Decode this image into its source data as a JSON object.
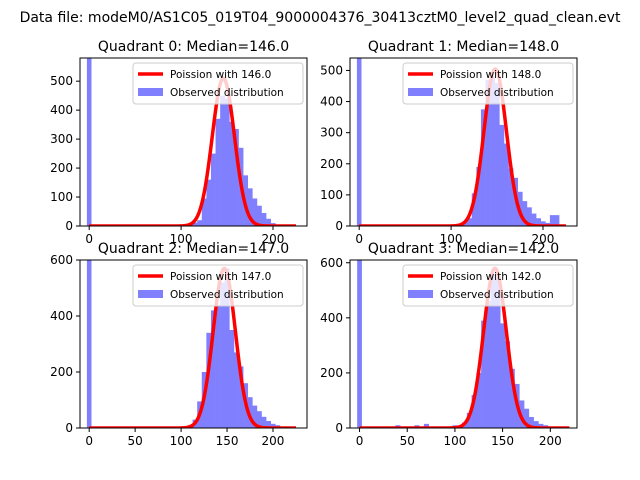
{
  "figure": {
    "suptitle": "Data file: modeM0/AS1C05_019T04_9000004376_30413cztM0_level2_quad_clean.evt"
  },
  "colors": {
    "poisson_line": "#ff0000",
    "observed_bars": "#8080ff",
    "axes": "#000000",
    "background": "#ffffff"
  },
  "chart_data": [
    {
      "type": "bar",
      "title": "Quadrant 0: Median=146.0",
      "legend_position": "top-right",
      "legend": [
        "Poission with 146.0",
        "Observed distribution"
      ],
      "xlim": [
        -10,
        237
      ],
      "ylim": [
        0,
        580
      ],
      "xticks": [
        0,
        100,
        200
      ],
      "yticks": [
        0,
        100,
        200,
        300,
        400,
        500
      ],
      "bin_width": 5,
      "spike": {
        "x": 0,
        "value": 580
      },
      "bins": [
        {
          "x": 110,
          "value": 5
        },
        {
          "x": 115,
          "value": 12
        },
        {
          "x": 120,
          "value": 20
        },
        {
          "x": 125,
          "value": 95
        },
        {
          "x": 130,
          "value": 160
        },
        {
          "x": 135,
          "value": 250
        },
        {
          "x": 140,
          "value": 370
        },
        {
          "x": 145,
          "value": 450
        },
        {
          "x": 150,
          "value": 440
        },
        {
          "x": 155,
          "value": 360
        },
        {
          "x": 160,
          "value": 335
        },
        {
          "x": 165,
          "value": 270
        },
        {
          "x": 170,
          "value": 175
        },
        {
          "x": 175,
          "value": 130
        },
        {
          "x": 180,
          "value": 95
        },
        {
          "x": 185,
          "value": 70
        },
        {
          "x": 190,
          "value": 45
        },
        {
          "x": 195,
          "value": 25
        },
        {
          "x": 200,
          "value": 10
        },
        {
          "x": 205,
          "value": 5
        }
      ],
      "poisson": {
        "mean": 146.0,
        "peak": 510,
        "sigma": 12.1,
        "x_range": [
          0,
          225
        ]
      }
    },
    {
      "type": "bar",
      "title": "Quadrant 1: Median=148.0",
      "legend_position": "top-right",
      "legend": [
        "Poission with 148.0",
        "Observed distribution"
      ],
      "xlim": [
        -10,
        237
      ],
      "ylim": [
        0,
        540
      ],
      "xticks": [
        0,
        100,
        200
      ],
      "yticks": [
        0,
        100,
        200,
        300,
        400,
        500
      ],
      "bin_width": 5,
      "spike": {
        "x": 0,
        "value": 540
      },
      "bins": [
        {
          "x": 110,
          "value": 5
        },
        {
          "x": 115,
          "value": 12
        },
        {
          "x": 120,
          "value": 25
        },
        {
          "x": 125,
          "value": 105
        },
        {
          "x": 130,
          "value": 190
        },
        {
          "x": 135,
          "value": 375
        },
        {
          "x": 140,
          "value": 470
        },
        {
          "x": 145,
          "value": 480
        },
        {
          "x": 150,
          "value": 460
        },
        {
          "x": 155,
          "value": 325
        },
        {
          "x": 160,
          "value": 265
        },
        {
          "x": 165,
          "value": 185
        },
        {
          "x": 170,
          "value": 155
        },
        {
          "x": 175,
          "value": 110
        },
        {
          "x": 180,
          "value": 80
        },
        {
          "x": 185,
          "value": 60
        },
        {
          "x": 190,
          "value": 40
        },
        {
          "x": 195,
          "value": 25
        },
        {
          "x": 200,
          "value": 15
        },
        {
          "x": 205,
          "value": 10
        },
        {
          "x": 210,
          "value": 35
        },
        {
          "x": 215,
          "value": 35
        }
      ],
      "poisson": {
        "mean": 148.0,
        "peak": 505,
        "sigma": 12.2,
        "x_range": [
          0,
          225
        ]
      }
    },
    {
      "type": "bar",
      "title": "Quadrant 2: Median=147.0",
      "legend_position": "top-right",
      "legend": [
        "Poission with 147.0",
        "Observed distribution"
      ],
      "xlim": [
        -10,
        237
      ],
      "ylim": [
        0,
        600
      ],
      "xticks": [
        0,
        50,
        100,
        150,
        200
      ],
      "yticks": [
        0,
        200,
        400,
        600
      ],
      "bin_width": 5,
      "spike": {
        "x": 0,
        "value": 600
      },
      "bins": [
        {
          "x": 105,
          "value": 5
        },
        {
          "x": 110,
          "value": 10
        },
        {
          "x": 115,
          "value": 30
        },
        {
          "x": 120,
          "value": 95
        },
        {
          "x": 125,
          "value": 200
        },
        {
          "x": 130,
          "value": 340
        },
        {
          "x": 135,
          "value": 420
        },
        {
          "x": 140,
          "value": 440
        },
        {
          "x": 145,
          "value": 520
        },
        {
          "x": 150,
          "value": 570
        },
        {
          "x": 155,
          "value": 350
        },
        {
          "x": 160,
          "value": 270
        },
        {
          "x": 165,
          "value": 220
        },
        {
          "x": 170,
          "value": 160
        },
        {
          "x": 175,
          "value": 110
        },
        {
          "x": 180,
          "value": 80
        },
        {
          "x": 185,
          "value": 60
        },
        {
          "x": 190,
          "value": 40
        },
        {
          "x": 195,
          "value": 25
        },
        {
          "x": 200,
          "value": 15
        },
        {
          "x": 205,
          "value": 10
        }
      ],
      "poisson": {
        "mean": 147.0,
        "peak": 570,
        "sigma": 12.1,
        "x_range": [
          0,
          225
        ]
      }
    },
    {
      "type": "bar",
      "title": "Quadrant 3: Median=142.0",
      "legend_position": "top-right",
      "legend": [
        "Poission with 142.0",
        "Observed distribution"
      ],
      "xlim": [
        -10,
        228
      ],
      "ylim": [
        0,
        610
      ],
      "xticks": [
        0,
        50,
        100,
        150,
        200
      ],
      "yticks": [
        0,
        200,
        400,
        600
      ],
      "bin_width": 5,
      "spike": {
        "x": 0,
        "value": 610
      },
      "bins": [
        {
          "x": 40,
          "value": 10
        },
        {
          "x": 60,
          "value": 10
        },
        {
          "x": 70,
          "value": 15
        },
        {
          "x": 100,
          "value": 10
        },
        {
          "x": 110,
          "value": 20
        },
        {
          "x": 115,
          "value": 55
        },
        {
          "x": 120,
          "value": 120
        },
        {
          "x": 125,
          "value": 200
        },
        {
          "x": 130,
          "value": 390
        },
        {
          "x": 135,
          "value": 460
        },
        {
          "x": 140,
          "value": 560
        },
        {
          "x": 145,
          "value": 545
        },
        {
          "x": 150,
          "value": 380
        },
        {
          "x": 155,
          "value": 315
        },
        {
          "x": 160,
          "value": 215
        },
        {
          "x": 165,
          "value": 160
        },
        {
          "x": 170,
          "value": 100
        },
        {
          "x": 175,
          "value": 70
        },
        {
          "x": 180,
          "value": 40
        },
        {
          "x": 185,
          "value": 25
        },
        {
          "x": 190,
          "value": 15
        },
        {
          "x": 195,
          "value": 10
        }
      ],
      "poisson": {
        "mean": 142.0,
        "peak": 580,
        "sigma": 11.9,
        "x_range": [
          0,
          220
        ]
      }
    }
  ]
}
